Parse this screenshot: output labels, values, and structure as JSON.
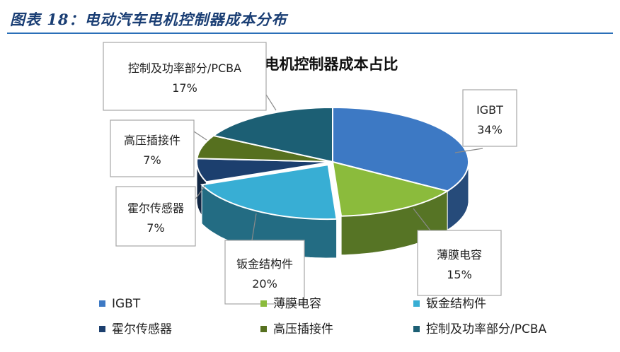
{
  "page": {
    "title": "图表 18：电动汽车电机控制器成本分布"
  },
  "chart_data": {
    "type": "pie",
    "title": "电机控制器成本占比",
    "categories": [
      "IGBT",
      "薄膜电容",
      "钣金结构件",
      "霍尔传感器",
      "高压插接件",
      "控制及功率部分/PCBA"
    ],
    "values": [
      34,
      15,
      20,
      7,
      7,
      17
    ],
    "value_labels": [
      "34%",
      "15%",
      "20%",
      "7%",
      "7%",
      "17%"
    ],
    "colors": [
      "#3d79c4",
      "#8bbb3c",
      "#38aed4",
      "#1c3f6e",
      "#56701f",
      "#1c5f74"
    ],
    "legend_position": "bottom",
    "legend_order": [
      0,
      1,
      2,
      3,
      4,
      5
    ]
  }
}
